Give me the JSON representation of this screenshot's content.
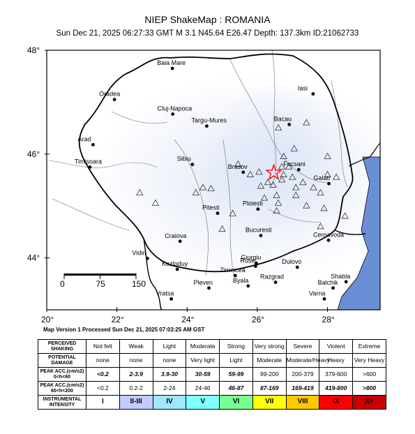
{
  "header": {
    "title": "NIEP ShakeMap : ROMANIA",
    "subtitle": "Sun Dec 21, 2025 06:27:33 GMT   M 3.1   N45.64 E26.47   Depth: 137.3km   ID:21062733"
  },
  "map": {
    "lon_range": [
      20,
      29.5
    ],
    "lat_range": [
      43,
      48
    ],
    "lat_tick_labels": [
      "48°",
      "46°",
      "44°"
    ],
    "lon_tick_labels": [
      "20°",
      "22°",
      "24°",
      "26°",
      "28°"
    ],
    "epicenter": {
      "lat": 45.64,
      "lon": 26.47,
      "symbol": "red-star"
    },
    "scale_bar": {
      "labels": [
        "0",
        "75",
        "150"
      ]
    },
    "colors": {
      "land": "#ffffff",
      "sea": "#6b8fd6",
      "shaking_light": "#dfe6f7",
      "epicenter": "#ff0000"
    },
    "cities": [
      {
        "name": "Baia Mare",
        "lat": 47.65,
        "lon": 23.58
      },
      {
        "name": "Oradea",
        "lat": 47.05,
        "lon": 21.93
      },
      {
        "name": "Cluj-Napoca",
        "lat": 46.77,
        "lon": 23.59
      },
      {
        "name": "Targu-Mures",
        "lat": 46.54,
        "lon": 24.56
      },
      {
        "name": "Iasi",
        "lat": 47.16,
        "lon": 27.59
      },
      {
        "name": "Bacau",
        "lat": 46.57,
        "lon": 26.91
      },
      {
        "name": "Arad",
        "lat": 46.18,
        "lon": 21.32
      },
      {
        "name": "Timisoara",
        "lat": 45.75,
        "lon": 21.23
      },
      {
        "name": "Sibiu",
        "lat": 45.8,
        "lon": 24.15
      },
      {
        "name": "Brasov",
        "lat": 45.65,
        "lon": 25.6
      },
      {
        "name": "Focsani",
        "lat": 45.7,
        "lon": 27.18
      },
      {
        "name": "Galati",
        "lat": 45.43,
        "lon": 28.04
      },
      {
        "name": "Ploiesti",
        "lat": 44.94,
        "lon": 26.02
      },
      {
        "name": "Pitesti",
        "lat": 44.86,
        "lon": 24.87
      },
      {
        "name": "Bucuresti",
        "lat": 44.43,
        "lon": 26.1
      },
      {
        "name": "Craiova",
        "lat": 44.32,
        "lon": 23.8
      },
      {
        "name": "Cernavoda",
        "lat": 44.34,
        "lon": 28.03
      },
      {
        "name": "Giurgiu",
        "lat": 43.9,
        "lon": 25.97
      },
      {
        "name": "Zimnicea",
        "lat": 43.66,
        "lon": 25.37
      },
      {
        "name": "Ruse",
        "lat": 43.84,
        "lon": 25.95
      },
      {
        "name": "Dulovo",
        "lat": 43.82,
        "lon": 27.14
      },
      {
        "name": "Kozloduy",
        "lat": 43.78,
        "lon": 23.72
      },
      {
        "name": "Vidin",
        "lat": 43.99,
        "lon": 22.87
      },
      {
        "name": "Pleven",
        "lat": 43.42,
        "lon": 24.62
      },
      {
        "name": "Byala",
        "lat": 43.46,
        "lon": 25.74
      },
      {
        "name": "Razgrad",
        "lat": 43.53,
        "lon": 26.52
      },
      {
        "name": "Shabla",
        "lat": 43.54,
        "lon": 28.53
      },
      {
        "name": "Balchik",
        "lat": 43.42,
        "lon": 28.16
      },
      {
        "name": "Vratsa",
        "lat": 43.21,
        "lon": 23.55
      },
      {
        "name": "Varna",
        "lat": 43.21,
        "lon": 27.91
      }
    ],
    "stations": [
      [
        22.65,
        45.25
      ],
      [
        23.1,
        45.05
      ],
      [
        24.25,
        45.25
      ],
      [
        24.45,
        45.35
      ],
      [
        24.68,
        45.33
      ],
      [
        25.3,
        44.85
      ],
      [
        25.0,
        44.55
      ],
      [
        25.45,
        45.8
      ],
      [
        25.8,
        45.6
      ],
      [
        26.1,
        45.38
      ],
      [
        26.3,
        45.45
      ],
      [
        26.05,
        45.65
      ],
      [
        26.45,
        45.4
      ],
      [
        26.55,
        45.2
      ],
      [
        26.7,
        45.5
      ],
      [
        26.75,
        45.95
      ],
      [
        26.9,
        45.75
      ],
      [
        27.0,
        45.55
      ],
      [
        27.1,
        45.35
      ],
      [
        27.3,
        45.45
      ],
      [
        27.6,
        45.35
      ],
      [
        27.4,
        45.0
      ],
      [
        27.8,
        45.25
      ],
      [
        28.0,
        45.95
      ],
      [
        28.0,
        45.6
      ],
      [
        27.9,
        44.95
      ],
      [
        28.5,
        44.8
      ],
      [
        26.6,
        46.5
      ],
      [
        27.05,
        46.1
      ],
      [
        27.4,
        46.6
      ],
      [
        26.7,
        45.75
      ],
      [
        26.75,
        45.6
      ],
      [
        26.2,
        45.15
      ],
      [
        26.6,
        45.05
      ],
      [
        26.55,
        44.9
      ],
      [
        27.1,
        45.2
      ],
      [
        28.25,
        45.55
      ],
      [
        27.8,
        44.6
      ]
    ]
  },
  "processed_line": "Map Version 1 Processed Sun Dec 21, 2025 07:03:25 AM GST",
  "legend": {
    "rows": [
      {
        "header": "PERCEIVED SHAKING",
        "cells": [
          "Not felt",
          "Weak",
          "Light",
          "Moderate",
          "Strong",
          "Very strong",
          "Severe",
          "Violent",
          "Extreme"
        ]
      },
      {
        "header": "POTENTIAL DAMAGE",
        "cells": [
          "none",
          "none",
          "none",
          "Very light",
          "Light",
          "Moderate",
          "Moderate/Heavy",
          "Heavy",
          "Very Heavy"
        ]
      },
      {
        "header": "PEAK ACC.(cm/s2) 0<h<60",
        "cells": [
          "<0.2",
          "2-3.9",
          "3.9-30",
          "30-59",
          "59-99",
          "99-200",
          "200-379",
          "379-600",
          ">600"
        ]
      },
      {
        "header": "PEAK ACC.(cm/s2) 60<h<200",
        "cells": [
          "<0.2",
          "0.2-2",
          "2-24",
          "24-46",
          "46-87",
          "87-169",
          "169-419",
          "419-800",
          ">800"
        ]
      },
      {
        "header": "INSTRUMENTAL INTENSITY",
        "cells": [
          "I",
          "II-III",
          "IV",
          "V",
          "VI",
          "VII",
          "VIII",
          "IX",
          "X+"
        ]
      }
    ],
    "intensity_colors": [
      "#ffffff",
      "#bfccff",
      "#a0e6ff",
      "#80ffff",
      "#7aff93",
      "#ffff00",
      "#ffc800",
      "#ff0000",
      "#c80000"
    ]
  }
}
